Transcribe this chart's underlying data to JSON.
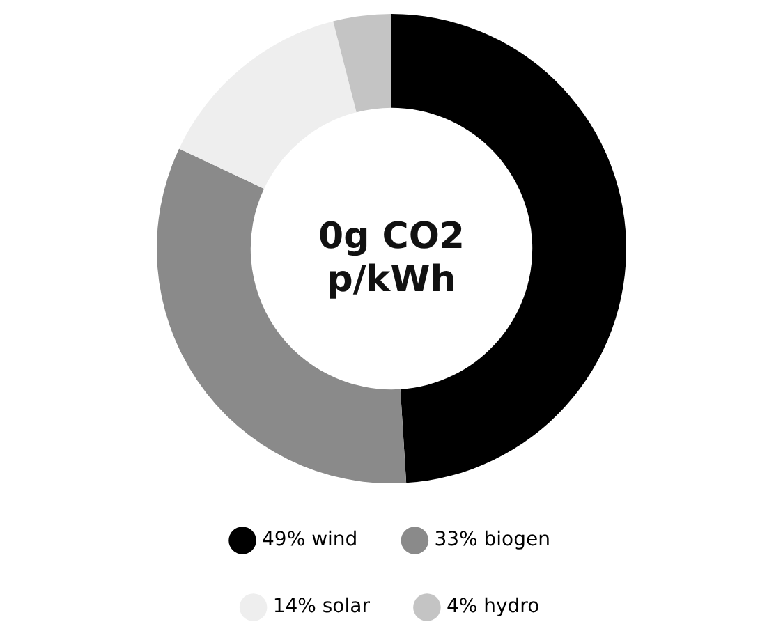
{
  "chart_data": {
    "type": "donut",
    "categories": [
      "wind",
      "biogen",
      "solar",
      "hydro"
    ],
    "values": [
      49,
      33,
      14,
      4
    ],
    "value_labels": [
      "49%",
      "33%",
      "14%",
      "4%"
    ],
    "colors": [
      "#000000",
      "#8a8a8a",
      "#eeeeee",
      "#c4c4c4"
    ],
    "annotations": [
      "0g CO2 p/kWh"
    ],
    "legend": "bottom"
  }
}
